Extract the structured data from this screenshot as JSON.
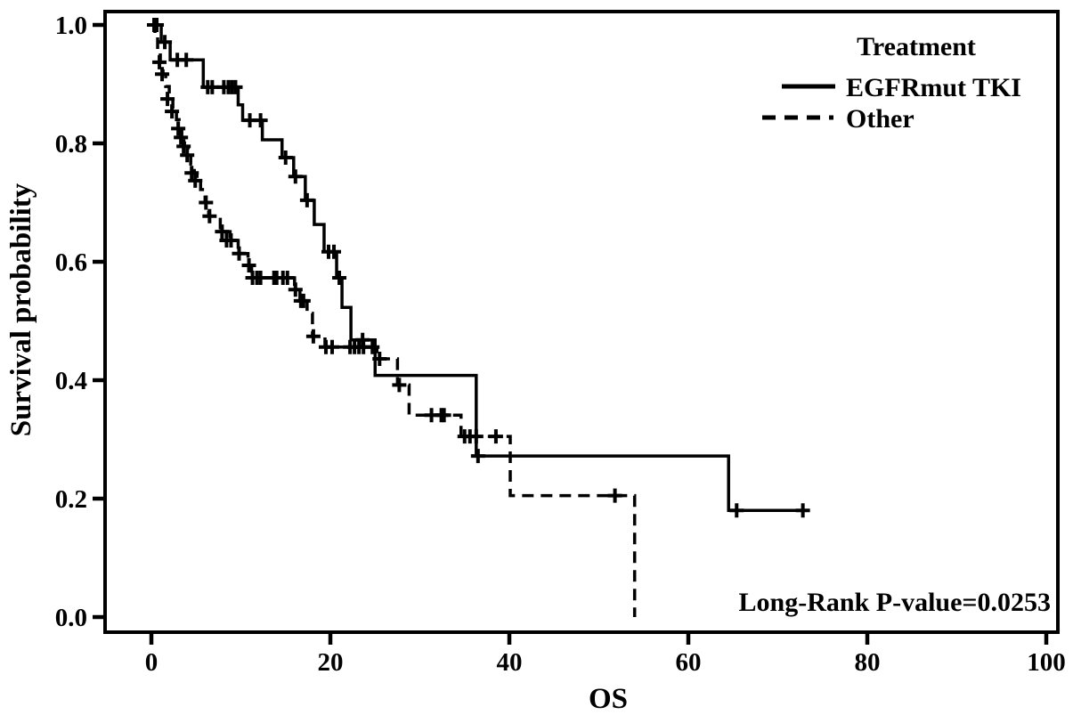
{
  "figure": {
    "background_color": "#ffffff",
    "ink_color": "#000000"
  },
  "chart_data": {
    "type": "line",
    "subtype": "kaplan-meier-step-survival",
    "title": "",
    "xlabel": "OS",
    "ylabel": "Survival probability",
    "xlim": [
      0,
      100
    ],
    "ylim": [
      0.0,
      1.0
    ],
    "grid": false,
    "x_ticks": [
      {
        "v": 0,
        "label": "0"
      },
      {
        "v": 20,
        "label": "20"
      },
      {
        "v": 40,
        "label": "40"
      },
      {
        "v": 60,
        "label": "60"
      },
      {
        "v": 80,
        "label": "80"
      },
      {
        "v": 100,
        "label": "100"
      }
    ],
    "y_ticks": [
      {
        "v": 0.0,
        "label": "0.0"
      },
      {
        "v": 0.2,
        "label": "0.2"
      },
      {
        "v": 0.4,
        "label": "0.4"
      },
      {
        "v": 0.6,
        "label": "0.6"
      },
      {
        "v": 0.8,
        "label": "0.8"
      },
      {
        "v": 1.0,
        "label": "1.0"
      }
    ],
    "legend": {
      "title": "Treatment",
      "position": "top-right",
      "entries": [
        {
          "label": "EGFRmut TKI",
          "line_style": "solid"
        },
        {
          "label": "Other",
          "line_style": "dashed"
        }
      ]
    },
    "annotation": "Long-Rank P-value=0.0253",
    "series": [
      {
        "name": "EGFRmut TKI",
        "line_style": "solid",
        "start": [
          0,
          1.0
        ],
        "end_time": 73.1,
        "steps": [
          [
            1.1,
            0.971
          ],
          [
            2.1,
            0.941
          ],
          [
            5.8,
            0.895
          ],
          [
            9.7,
            0.865
          ],
          [
            10.2,
            0.839
          ],
          [
            12.4,
            0.806
          ],
          [
            14.6,
            0.776
          ],
          [
            15.9,
            0.744
          ],
          [
            17.2,
            0.704
          ],
          [
            18.2,
            0.663
          ],
          [
            19.3,
            0.617
          ],
          [
            20.7,
            0.573
          ],
          [
            21.3,
            0.523
          ],
          [
            22.3,
            0.468
          ],
          [
            25.0,
            0.408
          ],
          [
            36.3,
            0.272
          ],
          [
            64.5,
            0.18
          ]
        ],
        "censors": [
          [
            0.3,
            1.0
          ],
          [
            0.6,
            1.0
          ],
          [
            1.5,
            0.971
          ],
          [
            2.9,
            0.941
          ],
          [
            3.9,
            0.941
          ],
          [
            6.3,
            0.895
          ],
          [
            6.8,
            0.895
          ],
          [
            8.1,
            0.895
          ],
          [
            8.6,
            0.895
          ],
          [
            9.0,
            0.895
          ],
          [
            9.4,
            0.895
          ],
          [
            11.0,
            0.839
          ],
          [
            12.2,
            0.839
          ],
          [
            15.0,
            0.776
          ],
          [
            16.1,
            0.744
          ],
          [
            17.4,
            0.704
          ],
          [
            19.8,
            0.617
          ],
          [
            20.4,
            0.617
          ],
          [
            21.0,
            0.573
          ],
          [
            23.6,
            0.468
          ],
          [
            36.5,
            0.272
          ],
          [
            65.4,
            0.18
          ],
          [
            72.8,
            0.18
          ]
        ]
      },
      {
        "name": "Other",
        "line_style": "dashed",
        "start": [
          0,
          1.0
        ],
        "end_time": 54.0,
        "steps": [
          [
            0.4,
            0.98
          ],
          [
            0.7,
            0.958
          ],
          [
            1.0,
            0.937
          ],
          [
            1.3,
            0.917
          ],
          [
            1.6,
            0.896
          ],
          [
            2.0,
            0.875
          ],
          [
            2.4,
            0.854
          ],
          [
            2.8,
            0.84
          ],
          [
            3.1,
            0.825
          ],
          [
            3.4,
            0.81
          ],
          [
            3.7,
            0.795
          ],
          [
            4.1,
            0.78
          ],
          [
            4.4,
            0.765
          ],
          [
            4.8,
            0.75
          ],
          [
            5.1,
            0.737
          ],
          [
            5.5,
            0.722
          ],
          [
            6.0,
            0.7
          ],
          [
            6.4,
            0.677
          ],
          [
            7.7,
            0.651
          ],
          [
            8.8,
            0.636
          ],
          [
            9.7,
            0.614
          ],
          [
            10.8,
            0.594
          ],
          [
            11.2,
            0.573
          ],
          [
            16.0,
            0.553
          ],
          [
            16.6,
            0.534
          ],
          [
            17.4,
            0.513
          ],
          [
            18.0,
            0.474
          ],
          [
            19.4,
            0.456
          ],
          [
            25.2,
            0.436
          ],
          [
            27.5,
            0.392
          ],
          [
            28.8,
            0.341
          ],
          [
            34.6,
            0.305
          ],
          [
            40.1,
            0.205
          ],
          [
            54.0,
            0.0
          ]
        ],
        "censors": [
          [
            0.9,
            0.937
          ],
          [
            1.2,
            0.917
          ],
          [
            1.8,
            0.875
          ],
          [
            2.3,
            0.854
          ],
          [
            3.0,
            0.825
          ],
          [
            3.3,
            0.81
          ],
          [
            3.6,
            0.795
          ],
          [
            4.0,
            0.78
          ],
          [
            4.5,
            0.75
          ],
          [
            4.9,
            0.737
          ],
          [
            6.1,
            0.7
          ],
          [
            6.5,
            0.677
          ],
          [
            7.9,
            0.651
          ],
          [
            8.4,
            0.636
          ],
          [
            8.9,
            0.636
          ],
          [
            9.8,
            0.614
          ],
          [
            10.9,
            0.594
          ],
          [
            11.3,
            0.573
          ],
          [
            11.8,
            0.573
          ],
          [
            12.2,
            0.573
          ],
          [
            13.7,
            0.573
          ],
          [
            14.0,
            0.573
          ],
          [
            14.7,
            0.573
          ],
          [
            15.2,
            0.573
          ],
          [
            16.1,
            0.553
          ],
          [
            16.7,
            0.534
          ],
          [
            17.0,
            0.534
          ],
          [
            18.1,
            0.474
          ],
          [
            19.5,
            0.456
          ],
          [
            20.2,
            0.456
          ],
          [
            22.2,
            0.456
          ],
          [
            22.7,
            0.456
          ],
          [
            23.2,
            0.456
          ],
          [
            23.7,
            0.456
          ],
          [
            24.7,
            0.456
          ],
          [
            25.5,
            0.436
          ],
          [
            27.7,
            0.392
          ],
          [
            31.3,
            0.341
          ],
          [
            32.4,
            0.341
          ],
          [
            32.7,
            0.341
          ],
          [
            35.0,
            0.305
          ],
          [
            35.6,
            0.305
          ],
          [
            36.3,
            0.305
          ],
          [
            38.5,
            0.305
          ],
          [
            51.8,
            0.205
          ]
        ]
      }
    ]
  }
}
